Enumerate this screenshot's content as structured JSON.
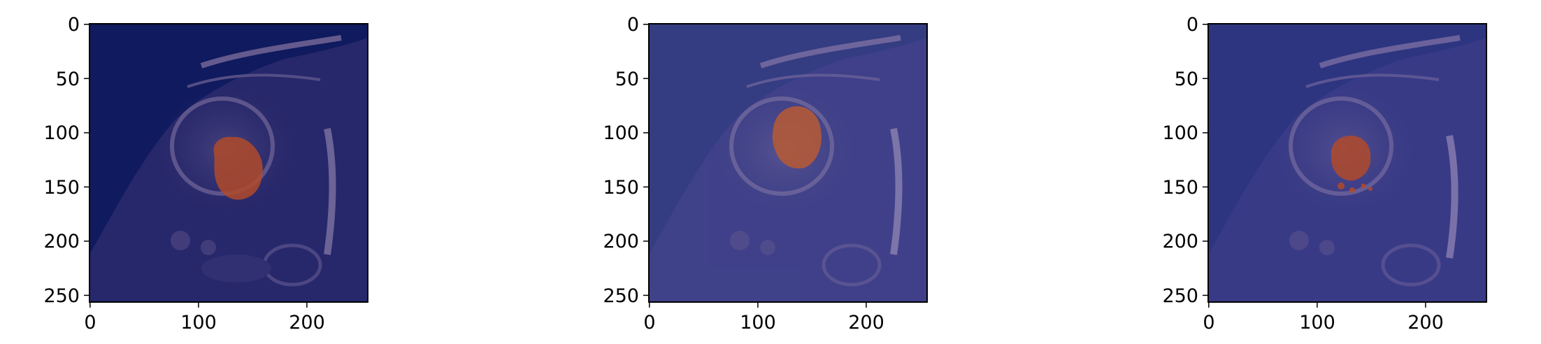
{
  "figure": {
    "panels": [
      {
        "id": "panel-1",
        "x_ticks": [
          "0",
          "100",
          "200"
        ],
        "y_ticks": [
          "0",
          "50",
          "100",
          "150",
          "200",
          "250"
        ],
        "background_color": "#101a5e",
        "mask_color": "#b04a2a"
      },
      {
        "id": "panel-2",
        "x_ticks": [
          "0",
          "100",
          "200"
        ],
        "y_ticks": [
          "0",
          "50",
          "100",
          "150",
          "200",
          "250"
        ],
        "background_color": "#343c82",
        "mask_color": "#b85a33"
      },
      {
        "id": "panel-3",
        "x_ticks": [
          "0",
          "100",
          "200"
        ],
        "y_ticks": [
          "0",
          "50",
          "100",
          "150",
          "200",
          "250"
        ],
        "background_color": "#2d3580",
        "mask_color": "#b24a2a"
      }
    ]
  }
}
